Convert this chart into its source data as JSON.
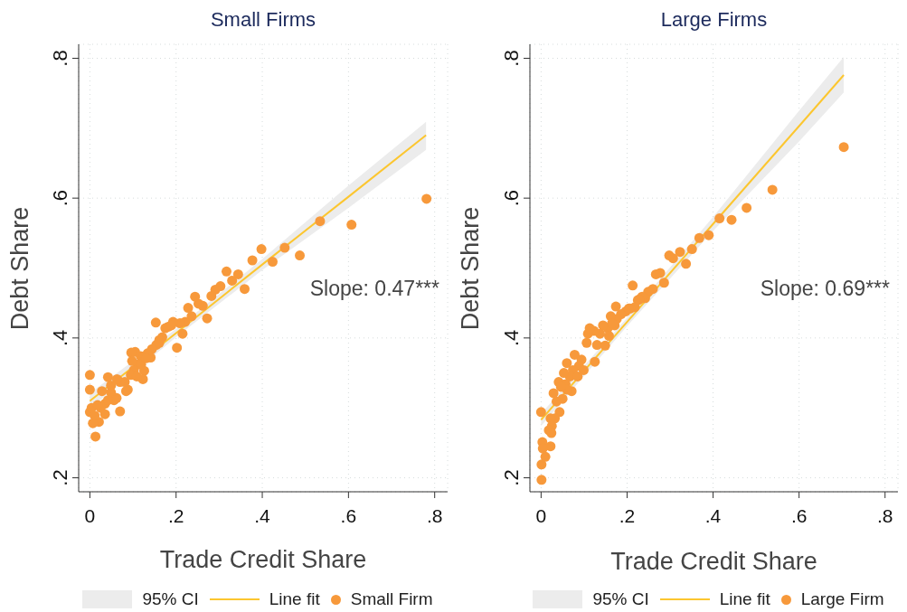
{
  "chart_data": [
    {
      "type": "scatter",
      "title": "Small Firms",
      "xlabel": "Trade Credit Share",
      "ylabel": "Debt Share",
      "annotations": [
        "Slope: 0.47***",
        "95% CI"
      ],
      "xlim": [
        -0.026,
        0.83
      ],
      "xticks": [
        0,
        {
          "value": 0.2,
          "label": ".2"
        },
        {
          "value": 0.4,
          "label": ".4"
        },
        {
          "value": 0.6,
          "label": ".6"
        },
        {
          "value": 0.8,
          "label": ".8"
        }
      ],
      "ylim": [
        0.18,
        0.82
      ],
      "yticks": [
        {
          "value": 0.2,
          "label": ".2"
        },
        {
          "value": 0.4,
          "label": ".4"
        },
        {
          "value": 0.6,
          "label": ".6"
        },
        {
          "value": 0.8,
          "label": ".8"
        }
      ],
      "grid": true,
      "legend": "bottom",
      "series": [
        {
          "type": "line",
          "name": "Line fit",
          "color": "#fcc62f",
          "x": [
            0,
            0.2,
            0.4,
            0.6,
            0.78
          ],
          "values": [
            0.31,
            0.407,
            0.505,
            0.602,
            0.69
          ],
          "lower": [
            0.299,
            0.401,
            0.497,
            0.586,
            0.669
          ],
          "upper": [
            0.321,
            0.413,
            0.513,
            0.618,
            0.709
          ]
        },
        {
          "name": "Small Firm",
          "color": "#f7993b",
          "marker": "circle",
          "x": [
            0.607,
            0.534,
            0.487,
            0.452,
            0.424,
            0.398,
            0.377,
            0.359,
            0.344,
            0.33,
            0.317,
            0.303,
            0.291,
            0.282,
            0.272,
            0.262,
            0.252,
            0.244,
            0.236,
            0.228,
            0.221,
            0.215,
            0.209,
            0.202,
            0.193,
            0.182,
            0.175,
            0.168,
            0.161,
            0.153,
            0.154,
            0.144,
            0.141,
            0.134,
            0.126,
            0.123,
            0.118,
            0.112,
            0.105,
            0.096,
            0.102,
            0.095,
            0.088,
            0.081,
            0.07,
            0.063,
            0.062,
            0.042,
            0.07,
            0.049,
            0.056,
            0.028,
            0.035,
            0.025,
            0.035,
            0.021,
            0.007,
            0.0,
            0.004,
            0.0,
            0.0,
            0.013,
            0.011,
            0.018,
            0.042,
            0.049,
            0.084,
            0.098,
            0.109,
            0.119,
            0.13,
            0.161,
            0.189,
            0.781
          ],
          "values": [
            0.562,
            0.567,
            0.518,
            0.529,
            0.509,
            0.527,
            0.511,
            0.47,
            0.491,
            0.482,
            0.495,
            0.474,
            0.469,
            0.46,
            0.428,
            0.446,
            0.449,
            0.459,
            0.431,
            0.443,
            0.423,
            0.406,
            0.421,
            0.386,
            0.423,
            0.416,
            0.414,
            0.401,
            0.397,
            0.422,
            0.39,
            0.384,
            0.372,
            0.378,
            0.353,
            0.341,
            0.374,
            0.362,
            0.38,
            0.379,
            0.354,
            0.347,
            0.326,
            0.337,
            0.337,
            0.341,
            0.314,
            0.344,
            0.295,
            0.322,
            0.311,
            0.324,
            0.306,
            0.3,
            0.291,
            0.28,
            0.278,
            0.294,
            0.3,
            0.347,
            0.326,
            0.259,
            0.289,
            0.304,
            0.311,
            0.332,
            0.324,
            0.367,
            0.345,
            0.362,
            0.371,
            0.393,
            0.418,
            0.599
          ]
        }
      ]
    },
    {
      "type": "scatter",
      "title": "Large Firms",
      "xlabel": "Trade Credit Share",
      "ylabel": "Debt Share",
      "annotations": [
        "Slope: 0.69***",
        "95% CI"
      ],
      "xlim": [
        -0.026,
        0.83
      ],
      "xticks": [
        0,
        {
          "value": 0.2,
          "label": ".2"
        },
        {
          "value": 0.4,
          "label": ".4"
        },
        {
          "value": 0.6,
          "label": ".6"
        },
        {
          "value": 0.8,
          "label": ".8"
        }
      ],
      "ylim": [
        0.18,
        0.82
      ],
      "yticks": [
        {
          "value": 0.2,
          "label": ".2"
        },
        {
          "value": 0.4,
          "label": ".4"
        },
        {
          "value": 0.6,
          "label": ".6"
        },
        {
          "value": 0.8,
          "label": ".8"
        }
      ],
      "grid": true,
      "legend": "bottom",
      "series": [
        {
          "type": "line",
          "name": "Line fit",
          "color": "#fcc62f",
          "x": [
            0,
            0.2,
            0.4,
            0.6,
            0.704
          ],
          "values": [
            0.283,
            0.423,
            0.563,
            0.703,
            0.776
          ],
          "lower": [
            0.274,
            0.417,
            0.553,
            0.681,
            0.751
          ],
          "upper": [
            0.292,
            0.429,
            0.573,
            0.725,
            0.802
          ]
        },
        {
          "name": "Large Firm",
          "color": "#f7993b",
          "marker": "circle",
          "x": [
            0.704,
            0.538,
            0.478,
            0.443,
            0.415,
            0.39,
            0.368,
            0.351,
            0.337,
            0.323,
            0.307,
            0.298,
            0.286,
            0.277,
            0.267,
            0.26,
            0.249,
            0.242,
            0.235,
            0.225,
            0.213,
            0.218,
            0.207,
            0.197,
            0.186,
            0.174,
            0.176,
            0.162,
            0.171,
            0.155,
            0.144,
            0.158,
            0.149,
            0.13,
            0.137,
            0.123,
            0.109,
            0.106,
            0.125,
            0.094,
            0.078,
            0.06,
            0.088,
            0.074,
            0.099,
            0.067,
            0.053,
            0.041,
            0.057,
            0.085,
            0.071,
            0.06,
            0.05,
            0.029,
            0.036,
            0.043,
            0.032,
            0.022,
            0.025,
            0.018,
            0.024,
            0.0,
            0.003,
            0.022,
            0.004,
            0.01,
            0.001,
            0.001,
            0.046,
            0.113,
            0.165,
            0.228,
            0.204
          ],
          "values": [
            0.673,
            0.612,
            0.586,
            0.569,
            0.571,
            0.547,
            0.543,
            0.527,
            0.506,
            0.523,
            0.514,
            0.518,
            0.479,
            0.493,
            0.491,
            0.47,
            0.466,
            0.457,
            0.459,
            0.454,
            0.475,
            0.444,
            0.442,
            0.438,
            0.434,
            0.445,
            0.427,
            0.431,
            0.418,
            0.414,
            0.418,
            0.403,
            0.389,
            0.39,
            0.406,
            0.41,
            0.406,
            0.393,
            0.366,
            0.369,
            0.376,
            0.364,
            0.36,
            0.354,
            0.354,
            0.345,
            0.35,
            0.337,
            0.334,
            0.345,
            0.324,
            0.326,
            0.313,
            0.321,
            0.309,
            0.294,
            0.285,
            0.285,
            0.274,
            0.268,
            0.264,
            0.294,
            0.251,
            0.245,
            0.242,
            0.23,
            0.219,
            0.197,
            0.33,
            0.414,
            0.421,
            0.455,
            0.442
          ]
        }
      ]
    }
  ]
}
